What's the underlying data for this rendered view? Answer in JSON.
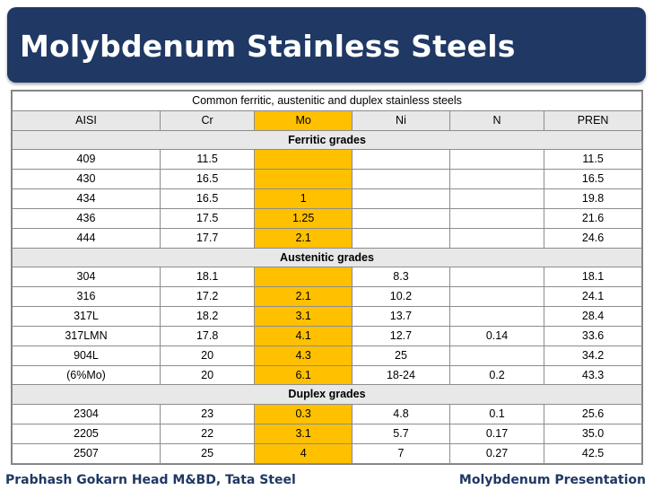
{
  "slide": {
    "title": "Molybdenum Stainless Steels",
    "footer_left": "Prabhash Gokarn Head M&BD, Tata Steel",
    "footer_right": "Molybdenum Presentation"
  },
  "table": {
    "caption": "Common ferritic, austenitic and duplex stainless steels",
    "headers": [
      "AISI",
      "Cr",
      "Mo",
      "Ni",
      "N",
      "PREN"
    ],
    "sections": [
      {
        "name": "Ferritic grades",
        "rows": [
          [
            "409",
            "11.5",
            "",
            "",
            "",
            "11.5"
          ],
          [
            "430",
            "16.5",
            "",
            "",
            "",
            "16.5"
          ],
          [
            "434",
            "16.5",
            "1",
            "",
            "",
            "19.8"
          ],
          [
            "436",
            "17.5",
            "1.25",
            "",
            "",
            "21.6"
          ],
          [
            "444",
            "17.7",
            "2.1",
            "",
            "",
            "24.6"
          ]
        ]
      },
      {
        "name": "Austenitic grades",
        "rows": [
          [
            "304",
            "18.1",
            "",
            "8.3",
            "",
            "18.1"
          ],
          [
            "316",
            "17.2",
            "2.1",
            "10.2",
            "",
            "24.1"
          ],
          [
            "317L",
            "18.2",
            "3.1",
            "13.7",
            "",
            "28.4"
          ],
          [
            "317LMN",
            "17.8",
            "4.1",
            "12.7",
            "0.14",
            "33.6"
          ],
          [
            "904L",
            "20",
            "4.3",
            "25",
            "",
            "34.2"
          ],
          [
            "(6%Mo)",
            "20",
            "6.1",
            "18-24",
            "0.2",
            "43.3"
          ]
        ]
      },
      {
        "name": "Duplex grades",
        "rows": [
          [
            "2304",
            "23",
            "0.3",
            "4.8",
            "0.1",
            "25.6"
          ],
          [
            "2205",
            "22",
            "3.1",
            "5.7",
            "0.17",
            "35.0"
          ],
          [
            "2507",
            "25",
            "4",
            "7",
            "0.27",
            "42.5"
          ]
        ]
      }
    ]
  },
  "colors": {
    "title_bg": "#1f3864",
    "mo_highlight": "#ffc000",
    "footer_text": "#1f3864"
  }
}
